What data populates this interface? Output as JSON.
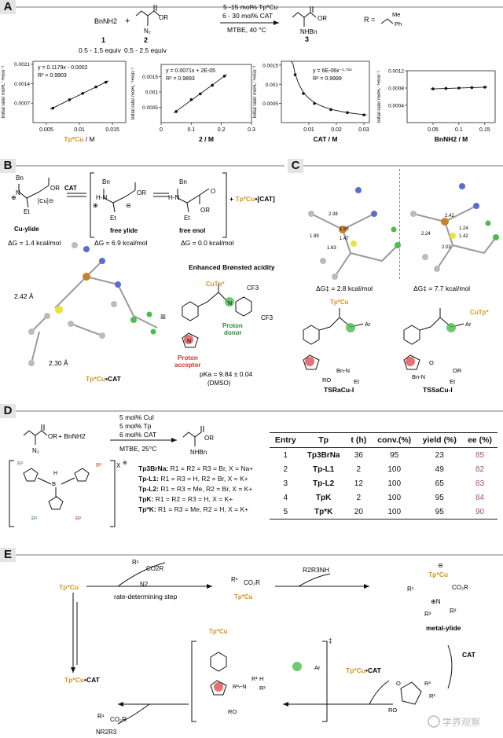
{
  "panels": {
    "A": "A",
    "B": "B",
    "C": "C",
    "D": "D",
    "E": "E"
  },
  "panelA": {
    "reactant1": "BnNH2",
    "reactant2_group": "OR",
    "reagent_line1": "5 -15 mol% Tp*Cu",
    "reagent_line2": "6 - 30 mol% CAT",
    "conditions": "MTBE, 40 °C",
    "product_group": "OR",
    "product_nh": "NHBn",
    "r_def": "R =",
    "r_me": "Me",
    "r_ph": "Ph",
    "label1": "1",
    "label2": "2",
    "label3": "3",
    "equiv1": "0.5 - 1.5 equiv",
    "equiv2": "0.5 - 2.5 equiv"
  },
  "chart_data": [
    {
      "type": "scatter",
      "xlabel": "Tp*Cu / M",
      "ylabel": "Initial rate/ mol•L⁻¹•min⁻¹",
      "equation": "y = 0.1179x - 0.0002",
      "r2": "R² = 0.9903",
      "x": [
        0.006,
        0.0085,
        0.0105,
        0.0125,
        0.014
      ],
      "y": [
        0.00052,
        0.00082,
        0.00105,
        0.00128,
        0.00145
      ],
      "xticks": [
        "0.005",
        "0.01",
        "0.015"
      ],
      "yticks": [
        "0.0007",
        "0.0014",
        "0.0021"
      ],
      "xlim": [
        0.003,
        0.017
      ],
      "ylim": [
        0.0,
        0.0022
      ]
    },
    {
      "type": "scatter",
      "xlabel": "2 / M",
      "ylabel": "Initial rate/ mol•L⁻¹•min⁻¹",
      "equation": "y = 0.0071x + 2E-05",
      "r2": "R² = 0.9893",
      "x": [
        0.05,
        0.1,
        0.13,
        0.17,
        0.21
      ],
      "y": [
        0.00036,
        0.00075,
        0.00094,
        0.00122,
        0.00152
      ],
      "xticks": [
        "0",
        "0.1",
        "0.2",
        "0.3"
      ],
      "yticks": [
        "0.0005",
        "0.001",
        "0.0015"
      ],
      "xlim": [
        0,
        0.3
      ],
      "ylim": [
        0.0,
        0.0019
      ]
    },
    {
      "type": "scatter",
      "xlabel": "CAT / M",
      "ylabel": "Initial rate/ mol•L⁻¹•min⁻¹",
      "equation": "y = 6E-06x⁻¹·⁰¹³",
      "r2": "R² = 0.9999",
      "x": [
        0.005,
        0.008,
        0.012,
        0.018,
        0.024,
        0.03
      ],
      "y": [
        0.00125,
        0.00076,
        0.0005,
        0.00034,
        0.00026,
        0.0002
      ],
      "xticks": [
        "0.01",
        "0.02",
        "0.03"
      ],
      "yticks": [
        "0.0005",
        "0.001",
        "0.0015"
      ],
      "xlim": [
        0,
        0.032
      ],
      "ylim": [
        0.0,
        0.0016
      ]
    },
    {
      "type": "scatter",
      "xlabel": "BnNH2 / M",
      "ylabel": "Initial rate/ mol•L⁻¹•min⁻¹",
      "x": [
        0.05,
        0.075,
        0.1,
        0.125,
        0.15
      ],
      "y": [
        0.00078,
        0.00079,
        0.0008,
        0.00081,
        0.00082
      ],
      "xticks": [
        "0.05",
        "0.1",
        "0.15"
      ],
      "yticks": [
        "0.0004",
        "0.0008",
        "0.0012"
      ],
      "xlim": [
        0,
        0.17
      ],
      "ylim": [
        0.0,
        0.0012
      ]
    }
  ],
  "panelB": {
    "catLabel": "CAT",
    "cuYlide": "Cu-ylide",
    "freeYlide": "free ylide",
    "freeEnol": "free enol",
    "cuCatPlus": "+ Tp*Cu•[CAT]",
    "dg1": "ΔG = 1.4 kcal/mol",
    "dg2": "ΔG = 6.9 kcal/mol",
    "dg3": "ΔG = 0.0 kcal/mol",
    "dist1": "2.42 Å",
    "dist2": "2.30 Å",
    "complexLabel": "Tp*Cu•CAT",
    "enhanced": "Enhanced Brønsted acidity",
    "cuTp": "CuTp*",
    "cf3a": "CF3",
    "cf3b": "CF3",
    "protonAcceptor": "Proton\nacceptor",
    "protonDonor": "Proton\ndonor",
    "pka": "pKa = 9.84 ± 0.04",
    "solvent": "(DMSO)"
  },
  "panelC": {
    "dg1": "ΔG‡ = 2.8 kcal/mol",
    "dg2": "ΔG‡ = 7.7 kcal/mol",
    "ts1": "TSRaCu-I",
    "ts2": "TSSaCu-I",
    "tpCu": "Tp*Cu",
    "cuTp": "CuTp*",
    "d1": "2.38",
    "d2": "1.99",
    "d3": "1.28",
    "d4": "1.47",
    "d5": "1.63",
    "d6": "2.42",
    "d7": "2.24",
    "d8": "1.24",
    "d9": "1.42",
    "d10": "2.03"
  },
  "panelD": {
    "cond1": "5 mol% CuI",
    "cond2": "5 mol% Tp",
    "cond3": "6 mol% CAT",
    "solvent": "MTBE, 25°C",
    "bnnh2": "+ BnNH2",
    "product_nh": "NHBn",
    "ligands": [
      {
        "name": "Tp3BrNa:",
        "desc": "R1 = R2 = R3 = Br, X = Na+"
      },
      {
        "name": "Tp-L1:",
        "desc": "R1 = R3 = H, R2 = Br, X = K+"
      },
      {
        "name": "Tp-L2:",
        "desc": "R1 = R3 = Me, R2 = Br, X = K+"
      },
      {
        "name": "TpK:",
        "desc": "R1 = R2 = R3 = H, X = K+"
      },
      {
        "name": "Tp*K:",
        "desc": "R1 = R3 = Me, R2 = H, X = K+"
      }
    ],
    "table": {
      "headers": [
        "Entry",
        "Tp",
        "t (h)",
        "conv.(%)",
        "yield (%)",
        "ee (%)"
      ],
      "rows": [
        [
          "1",
          "Tp3BrNa",
          "36",
          "95",
          "23",
          "85"
        ],
        [
          "2",
          "Tp-L1",
          "2",
          "100",
          "49",
          "82"
        ],
        [
          "3",
          "Tp-L2",
          "12",
          "100",
          "65",
          "83"
        ],
        [
          "4",
          "TpK",
          "2",
          "100",
          "95",
          "84"
        ],
        [
          "5",
          "Tp*K",
          "20",
          "100",
          "95",
          "90"
        ]
      ]
    }
  },
  "panelE": {
    "tpCu": "Tp*Cu",
    "rds": "rate-determining step",
    "co2r": "CO2R",
    "n2": "N2",
    "amine": "R2R3NH",
    "metalYlide": "metal-ylide",
    "cat": "CAT",
    "tpCuCat": "Tp*Cu•CAT",
    "tpCuCat2": "Tp*Cu•CAT",
    "productNR": "NR2R3",
    "ro": "RO",
    "watermark": "学界观察"
  }
}
